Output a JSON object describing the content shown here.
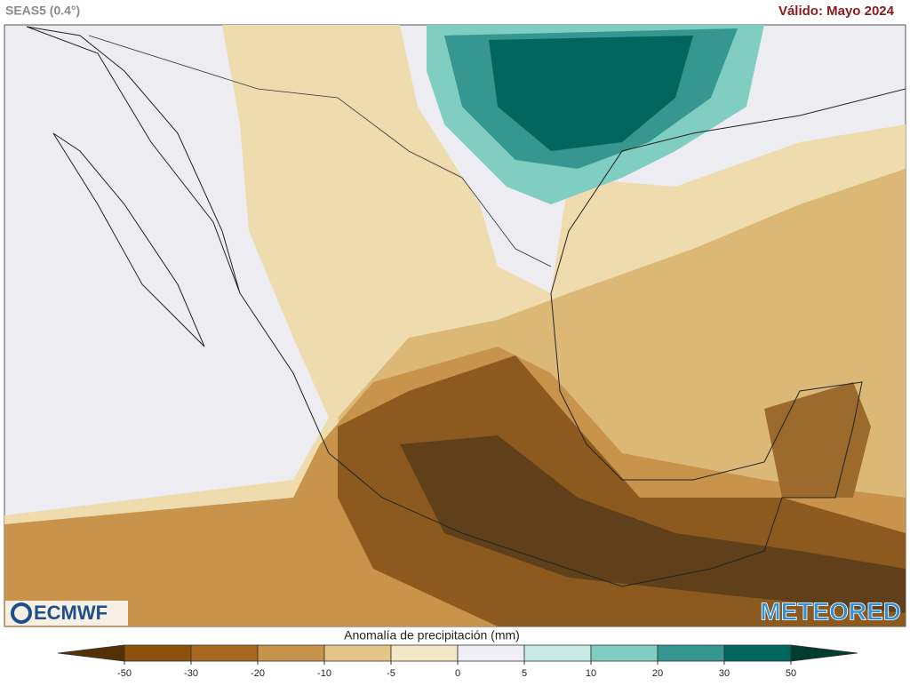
{
  "header": {
    "title": "SEAS5 (0.4°)",
    "valid": "Válido: Mayo 2024"
  },
  "logos": {
    "left": "ECMWF",
    "right": "METEORED"
  },
  "colorbar": {
    "title": "Anomalía de precipitación (mm)",
    "ticks": [
      -50,
      -30,
      -20,
      -10,
      -5,
      0,
      5,
      10,
      20,
      30,
      50
    ],
    "colors": [
      "#543005",
      "#8c510a",
      "#a8681f",
      "#c8934a",
      "#e2c687",
      "#f3e7c6",
      "#eeeef4",
      "#c7eae5",
      "#80cdc1",
      "#35978f",
      "#01665e",
      "#003c30"
    ]
  }
}
